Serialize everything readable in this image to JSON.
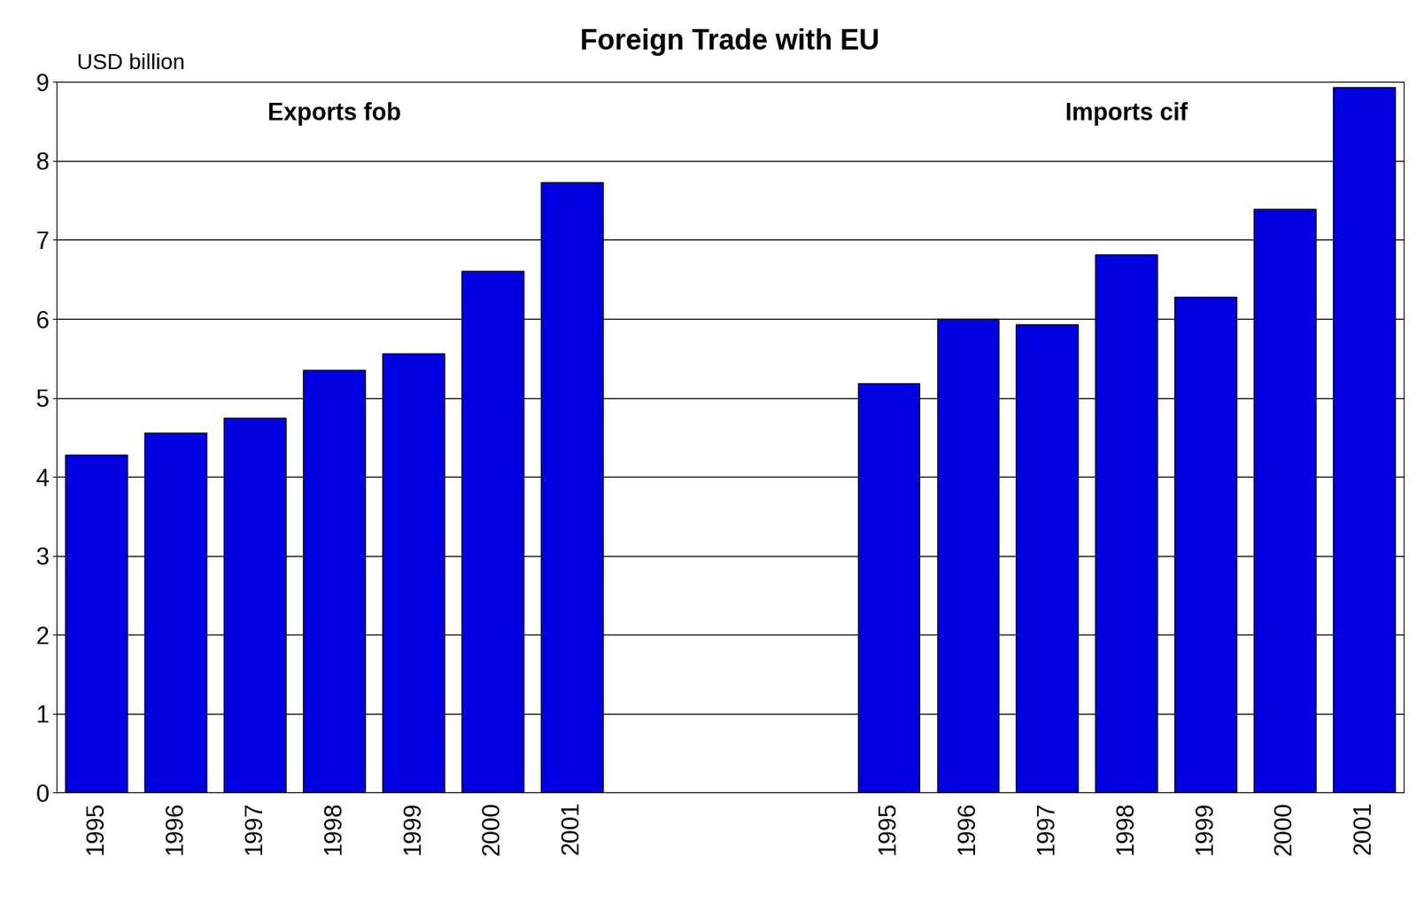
{
  "chart_data": {
    "type": "bar",
    "title": "Foreign Trade with EU",
    "y_label": "USD billion",
    "categories": [
      "1995",
      "1996",
      "1997",
      "1998",
      "1999",
      "2000",
      "2001",
      null,
      null,
      null,
      "1995",
      "1996",
      "1997",
      "1998",
      "1999",
      "2000",
      "2001"
    ],
    "values": [
      4.28,
      4.56,
      4.75,
      5.35,
      5.56,
      6.61,
      7.73,
      null,
      null,
      null,
      5.18,
      6.0,
      5.93,
      6.82,
      6.28,
      7.39,
      8.93
    ],
    "annotations": [
      "Exports fob",
      "Imports cif"
    ],
    "color": "#0000e0",
    "ylim": [
      0,
      9
    ],
    "yticks": [
      0,
      1,
      2,
      3,
      4,
      5,
      6,
      7,
      8,
      9
    ],
    "grid": true
  }
}
